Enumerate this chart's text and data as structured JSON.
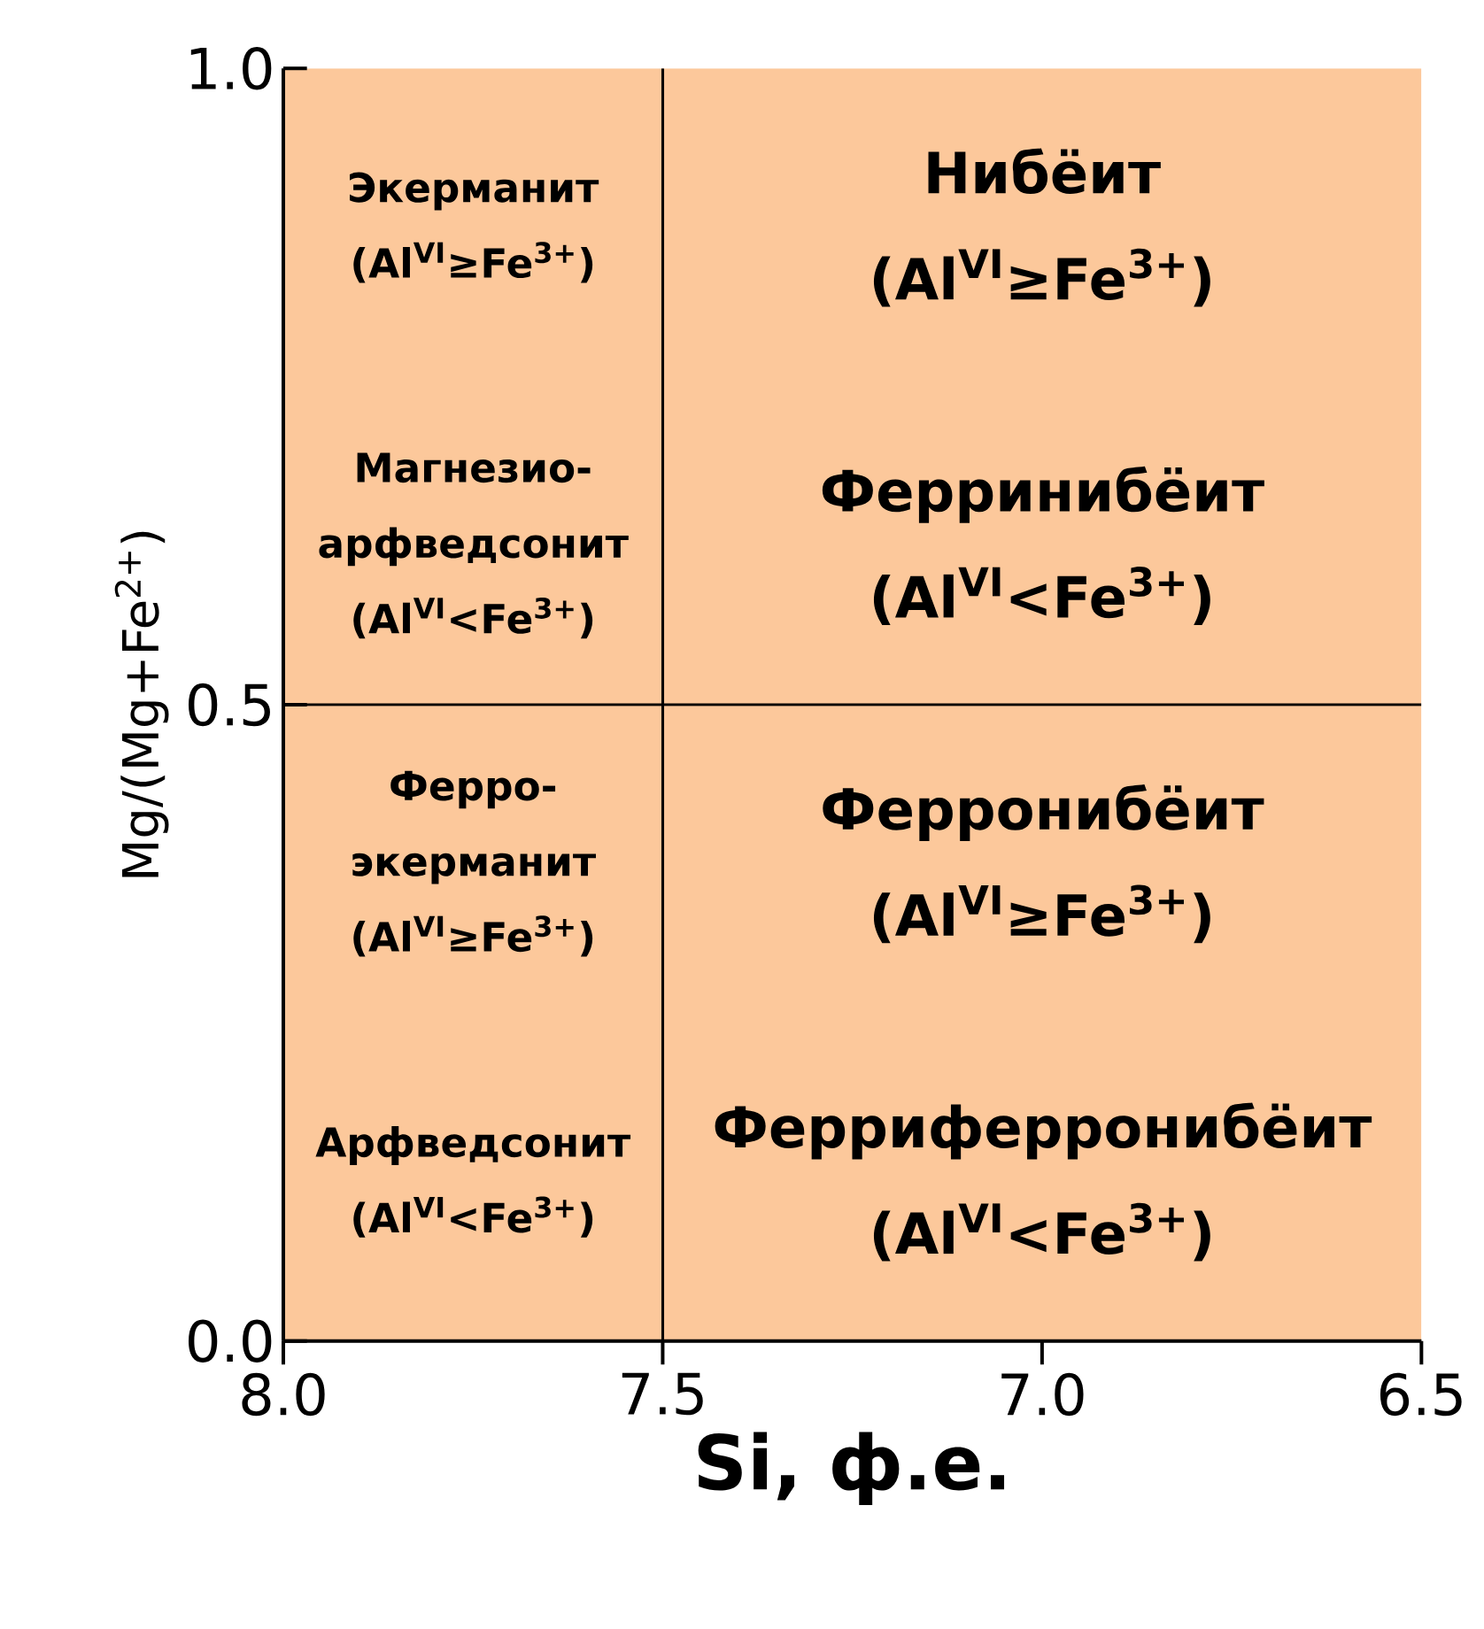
{
  "chart_data": {
    "type": "scatter",
    "xlabel": "Si, ф.е.",
    "ylabel": "Mg/(Mg+Fe$^{2+}$)",
    "xlim": [
      8.0,
      6.5
    ],
    "ylim": [
      0.0,
      1.0
    ],
    "xticks": [
      {
        "value": 8.0,
        "label": "8.0"
      },
      {
        "value": 7.5,
        "label": "7.5"
      },
      {
        "value": 7.0,
        "label": "7.0"
      },
      {
        "value": 6.5,
        "label": "6.5"
      }
    ],
    "yticks": [
      {
        "value": 0.0,
        "label": "0.0"
      },
      {
        "value": 0.5,
        "label": "0.5"
      },
      {
        "value": 1.0,
        "label": "1.0"
      }
    ],
    "bands": [
      {
        "axis": "y",
        "from": 0.0,
        "to": 1.0,
        "color": "#fcc89b"
      }
    ],
    "ref_lines": [
      {
        "axis": "x",
        "value": 7.5,
        "color": "#000000"
      },
      {
        "axis": "y",
        "value": 0.5,
        "color": "#000000"
      }
    ],
    "annotations": [
      "Экерманит (Al$^{VI}$≥Fe$^{3+}$)",
      "Магнезио-арфведсонит (Al$^{VI}$<Fe$^{3+}$)",
      "Нибёит (Al$^{VI}$≥Fe$^{3+}$)",
      "Ферринибёит (Al$^{VI}$<Fe$^{3+}$)",
      "Ферро-экерманит (Al$^{VI}$≥Fe$^{3+}$)",
      "Арфведсонит (Al$^{VI}$<Fe$^{3+}$)",
      "Ферронибёит (Al$^{VI}$≥Fe$^{3+}$)",
      "Ферриферронибёит (Al$^{VI}$<Fe$^{3+}$)"
    ]
  }
}
